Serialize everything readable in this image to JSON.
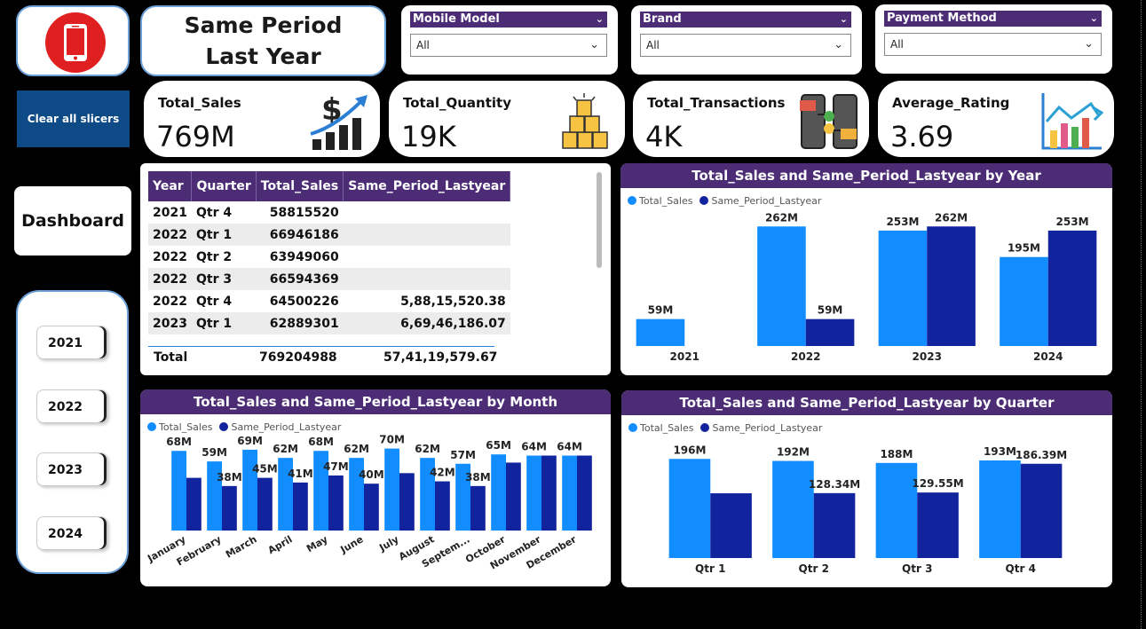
{
  "header": {
    "title": "Same Period Last Year",
    "logo_icon": "smartphone-icon"
  },
  "slicers": [
    {
      "label": "Mobile Model",
      "value": "All"
    },
    {
      "label": "Brand",
      "value": "All"
    },
    {
      "label": "Payment Method",
      "value": "All"
    }
  ],
  "clear_button": "Clear all slicers",
  "dashboard_button": "Dashboard",
  "year_buttons": [
    "2021",
    "2022",
    "2023",
    "2024"
  ],
  "kpis": [
    {
      "label": "Total_Sales",
      "value": "769M",
      "icon": "dollar-growth-icon"
    },
    {
      "label": "Total_Quantity",
      "value": "19K",
      "icon": "boxes-icon"
    },
    {
      "label": "Total_Transactions",
      "value": "4K",
      "icon": "phone-transaction-icon"
    },
    {
      "label": "Average_Rating",
      "value": "3.69",
      "icon": "bar-growth-icon"
    }
  ],
  "colors": {
    "total_sales": "#118dff",
    "same_period": "#12239e",
    "header": "#4b2c75"
  },
  "table": {
    "columns": [
      "Year",
      "Quarter",
      "Total_Sales",
      "Same_Period_Lastyear"
    ],
    "rows": [
      [
        "2021",
        "Qtr 4",
        "58815520",
        ""
      ],
      [
        "2022",
        "Qtr 1",
        "66946186",
        ""
      ],
      [
        "2022",
        "Qtr 2",
        "63949060",
        ""
      ],
      [
        "2022",
        "Qtr 3",
        "66594369",
        ""
      ],
      [
        "2022",
        "Qtr 4",
        "64500226",
        "5,88,15,520.38"
      ],
      [
        "2023",
        "Qtr 1",
        "62889301",
        "6,69,46,186.07"
      ]
    ],
    "total": {
      "label": "Total",
      "sales": "769204988",
      "same": "57,41,19,579.67"
    }
  },
  "chart_data": [
    {
      "type": "bar",
      "title": "Total_Sales and Same_Period_Lastyear by Year",
      "categories": [
        "2021",
        "2022",
        "2023",
        "2024"
      ],
      "series": [
        {
          "name": "Total_Sales",
          "values": [
            59,
            262,
            253,
            195
          ],
          "labels": [
            "59M",
            "262M",
            "253M",
            "195M"
          ]
        },
        {
          "name": "Same_Period_Lastyear",
          "values": [
            0,
            59,
            262,
            253
          ],
          "labels": [
            "",
            "59M",
            "262M",
            "253M"
          ]
        }
      ],
      "ylim": [
        0,
        280
      ],
      "legend": "top-left"
    },
    {
      "type": "bar",
      "title": "Total_Sales and Same_Period_Lastyear by Month",
      "categories": [
        "January",
        "February",
        "March",
        "April",
        "May",
        "June",
        "July",
        "August",
        "Septem...",
        "October",
        "November",
        "December"
      ],
      "series": [
        {
          "name": "Total_Sales",
          "values": [
            68,
            59,
            69,
            62,
            68,
            62,
            70,
            62,
            57,
            65,
            64,
            64
          ],
          "labels": [
            "68M",
            "59M",
            "69M",
            "62M",
            "68M",
            "62M",
            "70M",
            "62M",
            "57M",
            "65M",
            "64M",
            "64M"
          ]
        },
        {
          "name": "Same_Period_Lastyear",
          "values": [
            45,
            38,
            45,
            41,
            47,
            40,
            49,
            42,
            38,
            58,
            64,
            64
          ],
          "labels": [
            "",
            "38M",
            "45M",
            "41M",
            "47M",
            "40M",
            "",
            "42M",
            "38M",
            "",
            "",
            ""
          ]
        }
      ],
      "ylim": [
        0,
        75
      ],
      "legend": "top-left"
    },
    {
      "type": "bar",
      "title": "Total_Sales and Same_Period_Lastyear by Quarter",
      "categories": [
        "Qtr 1",
        "Qtr 2",
        "Qtr 3",
        "Qtr 4"
      ],
      "series": [
        {
          "name": "Total_Sales",
          "values": [
            196,
            192,
            188,
            193
          ],
          "labels": [
            "196M",
            "192M",
            "188M",
            "193M"
          ]
        },
        {
          "name": "Same_Period_Lastyear",
          "values": [
            128,
            128.34,
            129.55,
            186.39
          ],
          "labels": [
            "",
            "128.34M",
            "129.55M",
            "186.39M"
          ]
        }
      ],
      "ylim": [
        0,
        200
      ],
      "legend": "top-left"
    }
  ]
}
